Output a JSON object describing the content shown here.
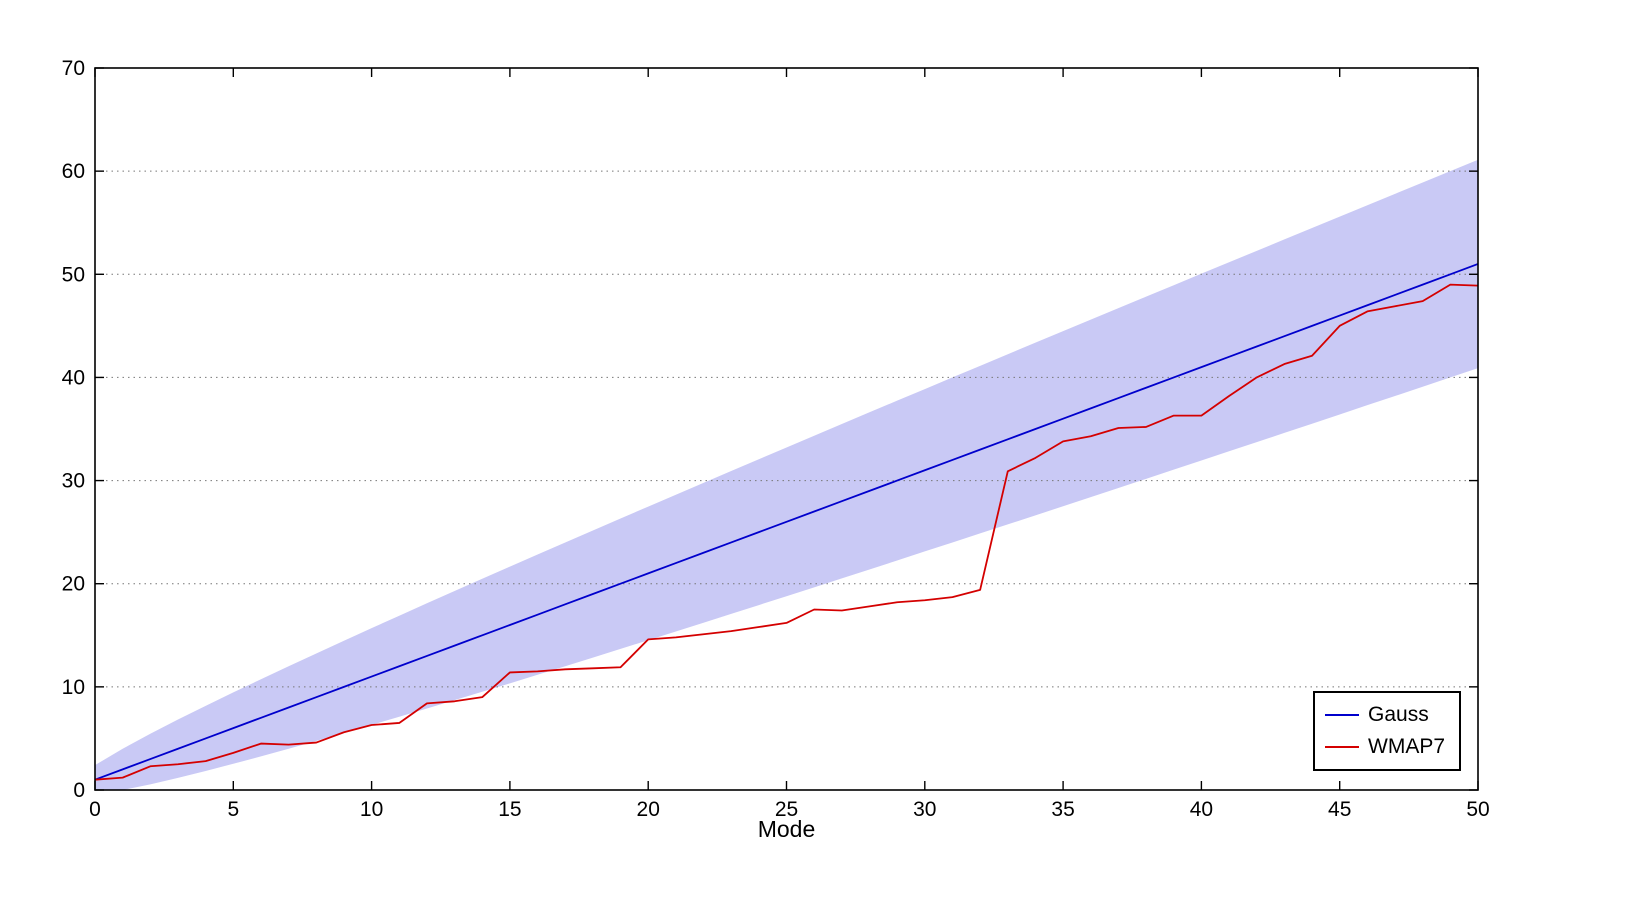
{
  "background": "#ffffff",
  "chart_data": {
    "type": "line",
    "title": "",
    "xlabel": "Mode",
    "ylabel": "",
    "xlim": [
      0,
      50
    ],
    "ylim": [
      0,
      70
    ],
    "x_ticks": [
      0,
      5,
      10,
      15,
      20,
      25,
      30,
      35,
      40,
      45,
      50
    ],
    "y_ticks": [
      0,
      10,
      20,
      30,
      40,
      50,
      60,
      70
    ],
    "grid": "horizontal-dotted",
    "legend_position": "bottom-right",
    "x": [
      0,
      1,
      2,
      3,
      4,
      5,
      6,
      7,
      8,
      9,
      10,
      11,
      12,
      13,
      14,
      15,
      16,
      17,
      18,
      19,
      20,
      21,
      22,
      23,
      24,
      25,
      26,
      27,
      28,
      29,
      30,
      31,
      32,
      33,
      34,
      35,
      36,
      37,
      38,
      39,
      40,
      41,
      42,
      43,
      44,
      45,
      46,
      47,
      48,
      49,
      50
    ],
    "series": [
      {
        "name": "Gauss",
        "color": "#0000cc",
        "values": [
          1,
          2,
          3,
          4,
          5,
          6,
          7,
          8,
          9,
          10,
          11,
          12,
          13,
          14,
          15,
          16,
          17,
          18,
          19,
          20,
          21,
          22,
          23,
          24,
          25,
          26,
          27,
          28,
          29,
          30,
          31,
          32,
          33,
          34,
          35,
          36,
          37,
          38,
          39,
          40,
          41,
          42,
          43,
          44,
          45,
          46,
          47,
          48,
          49,
          50,
          51
        ]
      },
      {
        "name": "WMAP7",
        "color": "#d40000",
        "values": [
          1.0,
          1.2,
          2.3,
          2.5,
          2.8,
          3.6,
          4.5,
          4.4,
          4.6,
          5.6,
          6.3,
          6.5,
          8.4,
          8.6,
          9.0,
          11.4,
          11.5,
          11.7,
          11.8,
          11.9,
          14.6,
          14.8,
          15.1,
          15.4,
          15.8,
          16.2,
          17.5,
          17.4,
          17.8,
          18.2,
          18.4,
          18.7,
          19.4,
          30.9,
          32.2,
          33.8,
          34.3,
          35.1,
          35.2,
          36.3,
          36.3,
          38.2,
          40.0,
          41.3,
          42.1,
          45.0,
          46.4,
          46.9,
          47.4,
          49.0,
          48.9
        ]
      }
    ],
    "band": {
      "name": "gauss-confidence-band",
      "color": "#c9c9f5",
      "lower": [
        -0.41,
        0,
        0.55,
        1.17,
        1.84,
        2.54,
        3.26,
        4,
        4.76,
        5.53,
        6.31,
        7.1,
        7.9,
        8.71,
        9.52,
        10.34,
        11.17,
        12,
        12.84,
        13.68,
        14.52,
        15.37,
        16.22,
        17.07,
        17.93,
        18.79,
        19.65,
        20.52,
        21.38,
        22.25,
        23.13,
        24,
        24.88,
        25.75,
        26.63,
        27.51,
        28.4,
        29.28,
        30.17,
        31.06,
        31.95,
        32.84,
        33.73,
        34.62,
        35.51,
        36.41,
        37.31,
        38.2,
        39.1,
        40,
        40.9
      ],
      "upper": [
        2.41,
        4,
        5.45,
        6.83,
        8.16,
        9.46,
        10.74,
        12,
        13.24,
        14.47,
        15.69,
        16.9,
        18.1,
        19.29,
        20.48,
        21.66,
        22.83,
        24,
        25.16,
        26.32,
        27.48,
        28.63,
        29.78,
        30.93,
        32.07,
        33.21,
        34.35,
        35.48,
        36.62,
        37.75,
        38.87,
        40,
        41.12,
        42.25,
        43.37,
        44.49,
        45.6,
        46.72,
        47.83,
        48.94,
        50.06,
        51.17,
        52.27,
        53.38,
        54.49,
        55.59,
        56.69,
        57.8,
        58.9,
        60,
        61.1
      ]
    },
    "axis_color": "#000000",
    "grid_color": "#777777",
    "tick_label_font_size": 21
  },
  "legend": {
    "entries": [
      {
        "label": "Gauss"
      },
      {
        "label": "WMAP7"
      }
    ]
  }
}
